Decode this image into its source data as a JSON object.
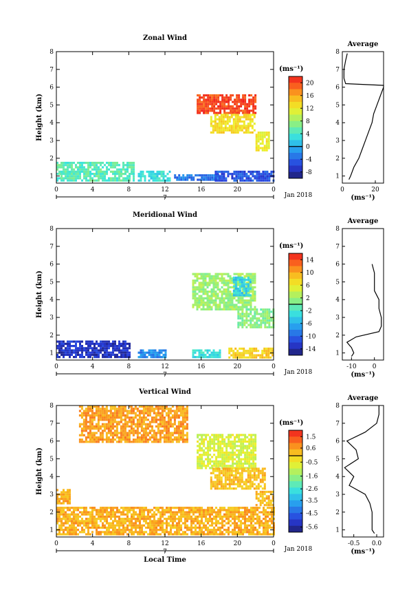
{
  "chart_data": [
    {
      "type": "heatmap",
      "title": "Zonal Wind",
      "ylabel": "Height (km)",
      "xticks": [
        "0",
        "4",
        "8",
        "12",
        "16",
        "20",
        "0"
      ],
      "xlim": [
        0,
        24
      ],
      "ylim": [
        0.6,
        8
      ],
      "yticks": [
        "1",
        "2",
        "3",
        "4",
        "5",
        "6",
        "7",
        "8"
      ],
      "date_tick": "7",
      "date_label": "Jan 2018",
      "colorbar": {
        "unit": "(ms⁻¹)",
        "ticks": [
          "20",
          "16",
          "12",
          "8",
          "4",
          "0",
          "-4",
          "-8"
        ],
        "range": [
          -10,
          22
        ]
      },
      "regions": [
        {
          "x": [
            0,
            8.5
          ],
          "y": [
            0.8,
            1.8
          ],
          "value": 5
        },
        {
          "x": [
            9,
            12.5
          ],
          "y": [
            0.8,
            1.3
          ],
          "value": 3
        },
        {
          "x": [
            13,
            18
          ],
          "y": [
            0.8,
            1.1
          ],
          "value": -3
        },
        {
          "x": [
            17.5,
            24
          ],
          "y": [
            0.8,
            1.3
          ],
          "value": -5
        },
        {
          "x": [
            15.5,
            22
          ],
          "y": [
            4.5,
            5.6
          ],
          "value": 20
        },
        {
          "x": [
            17,
            22
          ],
          "y": [
            3.5,
            4.5
          ],
          "value": 13
        },
        {
          "x": [
            22,
            23.5
          ],
          "y": [
            2.5,
            3.5
          ],
          "value": 12
        }
      ],
      "profile": {
        "title": "Average",
        "xlabel": "(ms⁻¹)",
        "xticks": [
          "0",
          "20"
        ],
        "xlim": [
          0,
          25
        ],
        "height": [
          0.8,
          1.0,
          1.5,
          2.0,
          2.5,
          3.0,
          3.5,
          4.0,
          4.5,
          5.0,
          5.5,
          6.0,
          6.1,
          6.2,
          6.5,
          7.0,
          7.5,
          7.9
        ],
        "value": [
          4,
          5,
          7,
          10,
          12,
          14,
          16,
          18,
          19,
          21,
          23,
          25,
          25,
          2,
          1,
          1,
          2,
          3
        ]
      }
    },
    {
      "type": "heatmap",
      "title": "Meridional Wind",
      "ylabel": "Height (km)",
      "xticks": [
        "0",
        "4",
        "8",
        "12",
        "16",
        "20",
        "0"
      ],
      "xlim": [
        0,
        24
      ],
      "ylim": [
        0.6,
        8
      ],
      "yticks": [
        "1",
        "2",
        "3",
        "4",
        "5",
        "6",
        "7",
        "8"
      ],
      "date_tick": "7",
      "date_label": "Jan 2018",
      "colorbar": {
        "unit": "(ms⁻¹)",
        "ticks": [
          "14",
          "10",
          "6",
          "2",
          "-2",
          "-6",
          "-10",
          "-14"
        ],
        "range": [
          -16,
          16
        ]
      },
      "regions": [
        {
          "x": [
            0,
            8
          ],
          "y": [
            0.8,
            1.7
          ],
          "value": -13
        },
        {
          "x": [
            9,
            12
          ],
          "y": [
            0.8,
            1.2
          ],
          "value": -8
        },
        {
          "x": [
            15,
            18
          ],
          "y": [
            0.8,
            1.2
          ],
          "value": -3
        },
        {
          "x": [
            19,
            24
          ],
          "y": [
            0.8,
            1.3
          ],
          "value": 8
        },
        {
          "x": [
            15,
            22
          ],
          "y": [
            3.5,
            5.5
          ],
          "value": 2
        },
        {
          "x": [
            19.5,
            21.5
          ],
          "y": [
            4.3,
            5.3
          ],
          "value": -4
        },
        {
          "x": [
            20,
            24
          ],
          "y": [
            2.4,
            3.5
          ],
          "value": 1
        }
      ],
      "profile": {
        "title": "Average",
        "xlabel": "(ms⁻¹)",
        "xticks": [
          "-10",
          "0"
        ],
        "xlim": [
          -14,
          4
        ],
        "height": [
          0.8,
          1.0,
          1.3,
          1.6,
          1.9,
          2.2,
          2.5,
          3.0,
          3.5,
          4.0,
          4.5,
          5.0,
          5.5,
          6.0
        ],
        "value": [
          -10,
          -9,
          -10,
          -12,
          -8,
          2,
          3,
          3,
          2,
          2,
          0,
          0,
          0,
          -1
        ]
      }
    },
    {
      "type": "heatmap",
      "title": "Vertical Wind",
      "ylabel": "Height (km)",
      "xlabel": "Local Time",
      "xticks": [
        "0",
        "4",
        "8",
        "12",
        "16",
        "20",
        "0"
      ],
      "xlim": [
        0,
        24
      ],
      "ylim": [
        0.6,
        8
      ],
      "yticks": [
        "1",
        "2",
        "3",
        "4",
        "5",
        "6",
        "7",
        "8"
      ],
      "date_tick": "7",
      "date_label": "Jan 2018",
      "colorbar": {
        "unit": "(ms⁻¹)",
        "ticks": [
          "1.5",
          "0.6",
          "-0.5",
          "-1.6",
          "-2.6",
          "-3.5",
          "-4.5",
          "-5.6"
        ],
        "range": [
          -6,
          2
        ]
      },
      "regions": [
        {
          "x": [
            0,
            24
          ],
          "y": [
            0.8,
            2.3
          ],
          "value": 0.4
        },
        {
          "x": [
            2.5,
            14.5
          ],
          "y": [
            6,
            8
          ],
          "value": 0.6
        },
        {
          "x": [
            15.5,
            22
          ],
          "y": [
            4.5,
            6.4
          ],
          "value": -0.8
        },
        {
          "x": [
            17,
            23
          ],
          "y": [
            3.3,
            4.5
          ],
          "value": 0.2
        },
        {
          "x": [
            22,
            24
          ],
          "y": [
            2.4,
            3.2
          ],
          "value": 0.3
        },
        {
          "x": [
            0,
            1.5
          ],
          "y": [
            2.5,
            3.3
          ],
          "value": 0.4
        }
      ],
      "profile": {
        "title": "Average",
        "xlabel": "(ms⁻¹)",
        "xticks": [
          "-0.5",
          "0.0"
        ],
        "xlim": [
          -0.75,
          0.15
        ],
        "height": [
          0.8,
          1.0,
          1.5,
          2.0,
          2.5,
          3.0,
          3.5,
          4.0,
          4.5,
          5.0,
          5.5,
          6.0,
          6.5,
          7.0,
          7.5,
          8.0
        ],
        "value": [
          -0.05,
          -0.1,
          -0.1,
          -0.1,
          -0.15,
          -0.25,
          -0.6,
          -0.5,
          -0.7,
          -0.4,
          -0.45,
          -0.65,
          -0.25,
          0.0,
          0.05,
          0.05
        ]
      }
    }
  ]
}
